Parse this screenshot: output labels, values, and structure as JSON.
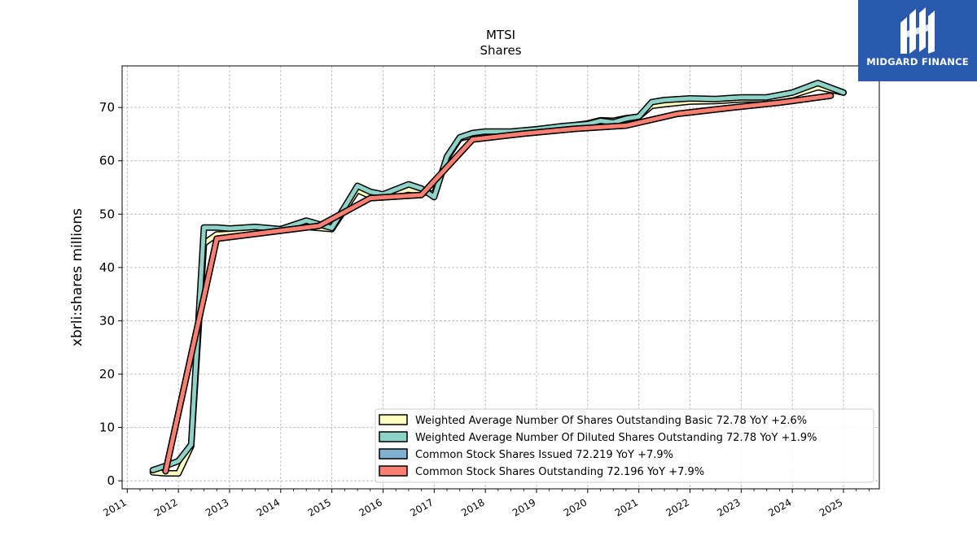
{
  "logo": {
    "text": "MIDGARD FINANCE",
    "background": "#2a5aad"
  },
  "chart_data": {
    "type": "line",
    "title": "MTSI",
    "subtitle": "Shares",
    "xlabel": "",
    "ylabel": "xbrli:shares millions",
    "xlim": [
      2010.9,
      2025.7
    ],
    "ylim": [
      -1.5,
      77.8
    ],
    "xticks": [
      "2011",
      "2012",
      "2013",
      "2014",
      "2015",
      "2016",
      "2017",
      "2018",
      "2019",
      "2020",
      "2021",
      "2022",
      "2023",
      "2024",
      "2025"
    ],
    "yticks": [
      0,
      10,
      20,
      30,
      40,
      50,
      60,
      70
    ],
    "grid": true,
    "legend_position": "bottom-right",
    "series": [
      {
        "name": "Weighted Average Number Of Shares Outstanding Basic  72.78 YoY +2.6%",
        "color": "#ffffbf",
        "x": [
          2011.5,
          2011.75,
          2012.0,
          2012.25,
          2012.5,
          2012.75,
          2013.0,
          2013.5,
          2014.0,
          2014.5,
          2015.0,
          2015.5,
          2015.75,
          2016.0,
          2016.5,
          2016.75,
          2017.0,
          2017.25,
          2017.5,
          2017.75,
          2018.0,
          2018.5,
          2019.0,
          2019.5,
          2020.0,
          2020.25,
          2020.5,
          2020.75,
          2021.0,
          2021.25,
          2021.5,
          2022.0,
          2022.5,
          2023.0,
          2023.5,
          2024.0,
          2024.5,
          2025.0
        ],
        "values": [
          1.6,
          1.4,
          1.4,
          6.5,
          44.5,
          46.2,
          46.3,
          46.8,
          47.2,
          47.6,
          47.2,
          54.5,
          53.4,
          53.6,
          54.6,
          54.2,
          53.8,
          60.5,
          64.2,
          64.8,
          65.0,
          65.4,
          65.9,
          66.4,
          67.0,
          67.6,
          67.5,
          68.0,
          68.3,
          70.3,
          70.6,
          71.1,
          71.2,
          71.5,
          71.6,
          72.3,
          73.8,
          72.8
        ]
      },
      {
        "name": "Weighted Average Number Of Diluted Shares Outstanding  72.78 YoY +1.9%",
        "color": "#8dd3c7",
        "x": [
          2011.5,
          2011.75,
          2012.0,
          2012.25,
          2012.5,
          2012.75,
          2013.0,
          2013.5,
          2014.0,
          2014.5,
          2015.0,
          2015.5,
          2015.75,
          2016.0,
          2016.5,
          2016.75,
          2017.0,
          2017.25,
          2017.5,
          2017.75,
          2018.0,
          2018.5,
          2019.0,
          2019.5,
          2020.0,
          2020.25,
          2020.5,
          2020.75,
          2021.0,
          2021.25,
          2021.5,
          2022.0,
          2022.5,
          2023.0,
          2023.5,
          2024.0,
          2024.5,
          2025.0
        ],
        "values": [
          2.0,
          2.8,
          3.7,
          6.8,
          47.5,
          47.5,
          47.3,
          47.6,
          47.2,
          48.8,
          47.4,
          55.3,
          54.2,
          53.7,
          55.6,
          54.8,
          53.2,
          60.8,
          64.4,
          65.2,
          65.5,
          65.5,
          65.9,
          66.5,
          66.9,
          67.5,
          67.2,
          67.9,
          68.3,
          71.0,
          71.4,
          71.7,
          71.6,
          71.9,
          71.9,
          72.8,
          74.6,
          72.8
        ]
      },
      {
        "name": "Common Stock Shares Issued  72.219 YoY +7.9%",
        "color": "#80b1d3",
        "x": [
          2011.75,
          2012.75,
          2014.75,
          2015.75,
          2016.75,
          2017.75,
          2018.75,
          2019.75,
          2020.75,
          2021.75,
          2022.75,
          2023.75,
          2024.75
        ],
        "values": [
          1.8,
          45.4,
          47.8,
          53.0,
          53.6,
          64.0,
          65.1,
          66.0,
          66.6,
          68.8,
          69.9,
          70.9,
          72.2
        ]
      },
      {
        "name": "Common Stock Shares Outstanding  72.196 YoY +7.9%",
        "color": "#fb8072",
        "x": [
          2011.75,
          2012.75,
          2014.75,
          2015.75,
          2016.75,
          2017.75,
          2018.75,
          2019.75,
          2020.75,
          2021.75,
          2022.75,
          2023.75,
          2024.75
        ],
        "values": [
          1.8,
          45.4,
          47.8,
          53.0,
          53.6,
          64.0,
          65.1,
          66.0,
          66.6,
          68.8,
          69.9,
          70.9,
          72.2
        ]
      }
    ]
  }
}
